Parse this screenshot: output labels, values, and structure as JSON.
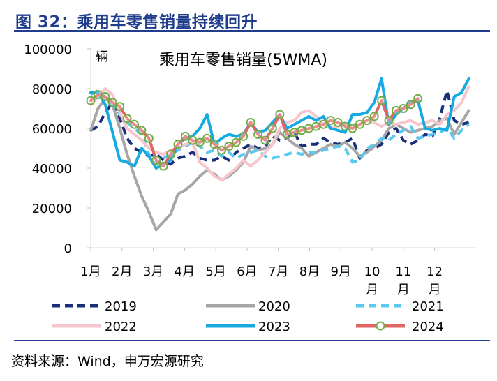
{
  "figure_title": "图 32：乘用车零售销量持续回升",
  "source_note": "资料来源：Wind，申万宏源研究",
  "chart_data": {
    "type": "line",
    "title": "乘用车零售销量(5WMA)",
    "ylabel": "辆",
    "xlabel": "",
    "ylim": [
      0,
      100000
    ],
    "yticks": [
      0,
      20000,
      40000,
      60000,
      80000,
      100000
    ],
    "ytick_labels": [
      "0",
      "20000",
      "40000",
      "60000",
      "80000",
      "100000"
    ],
    "x_range": [
      0,
      53
    ],
    "xticks": [
      0,
      4.3,
      8.6,
      12.9,
      17.2,
      21.5,
      25.8,
      30.1,
      34.4,
      38.7,
      43,
      47.3
    ],
    "xtick_labels": [
      [
        "1月"
      ],
      [
        "2月"
      ],
      [
        "3月"
      ],
      [
        "4月"
      ],
      [
        "5月"
      ],
      [
        "6月"
      ],
      [
        "7月"
      ],
      [
        "8月"
      ],
      [
        "9月"
      ],
      [
        "10",
        "月"
      ],
      [
        "11",
        "月"
      ],
      [
        "12",
        "月"
      ]
    ],
    "grid": false,
    "legend_position": "bottom",
    "series": [
      {
        "name": "2019",
        "color": "#1a2f7a",
        "dash": "dash",
        "width": 4,
        "marker": false,
        "values": [
          59000,
          61000,
          68000,
          73000,
          65000,
          55000,
          50000,
          48000,
          46000,
          47000,
          44000,
          42000,
          45000,
          46000,
          48000,
          45000,
          44000,
          44000,
          46000,
          44000,
          48000,
          50000,
          52000,
          50000,
          51000,
          56000,
          54000,
          55000,
          58000,
          51000,
          52000,
          52000,
          55000,
          53000,
          52000,
          53000,
          55000,
          45000,
          49000,
          50000,
          52000,
          58000,
          60000,
          54000,
          52000,
          54000,
          57000,
          56000,
          65000,
          79000,
          64000,
          62000,
          63000
        ]
      },
      {
        "name": "2020",
        "color": "#a6a6a6",
        "dash": "solid",
        "width": 4,
        "marker": false,
        "values": [
          59000,
          70000,
          75000,
          72000,
          60000,
          47000,
          36000,
          26000,
          18000,
          9000,
          13000,
          17000,
          27000,
          29000,
          32000,
          36000,
          39000,
          37000,
          34000,
          36000,
          39000,
          43000,
          51000,
          49000,
          50000,
          52000,
          58000,
          55000,
          52000,
          50000,
          46000,
          48000,
          50000,
          52000,
          51000,
          53000,
          50000,
          46000,
          48000,
          51000,
          54000,
          60000,
          62000,
          60000,
          58000,
          59000,
          60000,
          61000,
          64000,
          65000,
          57000,
          63000,
          69000
        ]
      },
      {
        "name": "2021",
        "color": "#5bc8ef",
        "dash": "dash",
        "width": 4,
        "marker": false,
        "values": [
          77000,
          79000,
          76000,
          72000,
          67000,
          63000,
          60000,
          57000,
          47000,
          42000,
          45000,
          47000,
          49000,
          51000,
          53000,
          51000,
          48000,
          49000,
          46000,
          48000,
          45000,
          47000,
          48000,
          49000,
          46000,
          45000,
          46000,
          47000,
          48000,
          47000,
          48000,
          48000,
          49000,
          50000,
          51000,
          50000,
          43000,
          44000,
          50000,
          52000,
          55000,
          54000,
          57000,
          59000,
          61000,
          55000,
          56000,
          57000,
          58000,
          60000,
          55000,
          59000,
          62000
        ]
      },
      {
        "name": "2022",
        "color": "#f6c6cd",
        "dash": "solid",
        "width": 4,
        "marker": false,
        "values": [
          72000,
          76000,
          80000,
          77000,
          68000,
          60000,
          57000,
          54000,
          50000,
          48000,
          47000,
          49000,
          50000,
          52000,
          53000,
          43000,
          40000,
          36000,
          34000,
          37000,
          40000,
          44000,
          41000,
          44000,
          48000,
          52000,
          60000,
          63000,
          64000,
          68000,
          69000,
          66000,
          62000,
          60000,
          61000,
          62000,
          60000,
          62000,
          64000,
          63000,
          61000,
          63000,
          62000,
          63000,
          64000,
          62000,
          63000,
          64000,
          62000,
          67000,
          69000,
          73000,
          81000
        ]
      },
      {
        "name": "2023",
        "color": "#17a9e1",
        "dash": "solid",
        "width": 4,
        "marker": false,
        "values": [
          78000,
          78000,
          72000,
          58000,
          44000,
          43000,
          41000,
          50000,
          46000,
          40000,
          42000,
          44000,
          52000,
          55000,
          56000,
          60000,
          67000,
          52000,
          55000,
          57000,
          56000,
          57000,
          63000,
          58000,
          59000,
          63000,
          67000,
          60000,
          62000,
          64000,
          66000,
          64000,
          66000,
          60000,
          59000,
          58000,
          67000,
          67000,
          68000,
          73000,
          85000,
          62000,
          67000,
          70000,
          73000,
          74000,
          60000,
          59000,
          60000,
          59000,
          76000,
          78000,
          85000
        ]
      },
      {
        "name": "2024",
        "color": "#e06666",
        "dash": "solid",
        "width": 4,
        "marker": true,
        "marker_color": "#70ad47",
        "values": [
          74000,
          77000,
          76000,
          73000,
          71000,
          65000,
          62000,
          59000,
          55000,
          44000,
          41000,
          47000,
          52000,
          56000,
          54000,
          53000,
          55000,
          52000,
          49000,
          51000,
          53000,
          56000,
          63000,
          57000,
          54000,
          60000,
          67000,
          57000,
          58000,
          59000,
          60000,
          61000,
          62000,
          64000,
          63000,
          61000,
          60000,
          62000,
          64000,
          66000,
          74000,
          64000,
          69000,
          70000,
          72000,
          75000
        ]
      }
    ]
  }
}
